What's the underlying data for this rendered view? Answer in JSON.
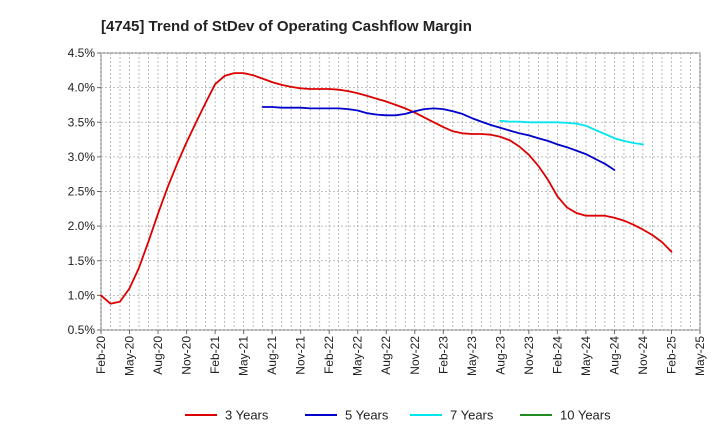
{
  "chart_data": {
    "type": "line",
    "title": "[4745]  Trend of StDev of Operating Cashflow Margin",
    "xlabel": "",
    "ylabel": "",
    "ylim": [
      0.005,
      0.045
    ],
    "y_ticks": [
      0.005,
      0.01,
      0.015,
      0.02,
      0.025,
      0.03,
      0.035,
      0.04,
      0.045
    ],
    "y_tick_labels": [
      "0.5%",
      "1.0%",
      "1.5%",
      "2.0%",
      "2.5%",
      "3.0%",
      "3.5%",
      "4.0%",
      "4.5%"
    ],
    "x_tick_labels": [
      "Feb-20",
      "May-20",
      "Aug-20",
      "Nov-20",
      "Feb-21",
      "May-21",
      "Aug-21",
      "Nov-21",
      "Feb-22",
      "May-22",
      "Aug-22",
      "Nov-22",
      "Feb-23",
      "May-23",
      "Aug-23",
      "Nov-23",
      "Feb-24",
      "May-24",
      "Aug-24",
      "Nov-24",
      "Feb-25",
      "May-25"
    ],
    "x_months": [
      "2020-02",
      "2020-03",
      "2020-04",
      "2020-05",
      "2020-06",
      "2020-07",
      "2020-08",
      "2020-09",
      "2020-10",
      "2020-11",
      "2020-12",
      "2021-01",
      "2021-02",
      "2021-03",
      "2021-04",
      "2021-05",
      "2021-06",
      "2021-07",
      "2021-08",
      "2021-09",
      "2021-10",
      "2021-11",
      "2021-12",
      "2022-01",
      "2022-02",
      "2022-03",
      "2022-04",
      "2022-05",
      "2022-06",
      "2022-07",
      "2022-08",
      "2022-09",
      "2022-10",
      "2022-11",
      "2022-12",
      "2023-01",
      "2023-02",
      "2023-03",
      "2023-04",
      "2023-05",
      "2023-06",
      "2023-07",
      "2023-08",
      "2023-09",
      "2023-10",
      "2023-11",
      "2023-12",
      "2024-01",
      "2024-02",
      "2024-03",
      "2024-04",
      "2024-05",
      "2024-06",
      "2024-07",
      "2024-08",
      "2024-09",
      "2024-10",
      "2024-11",
      "2024-12",
      "2025-01",
      "2025-02",
      "2025-03",
      "2025-04",
      "2025-05"
    ],
    "grid": true,
    "legend_position": "bottom",
    "series": [
      {
        "name": "3 Years",
        "color": "#dd0000",
        "start": "2020-02",
        "values": [
          0.01,
          0.0088,
          0.0091,
          0.011,
          0.014,
          0.0178,
          0.0218,
          0.0256,
          0.029,
          0.0321,
          0.035,
          0.0378,
          0.0405,
          0.0417,
          0.0421,
          0.0421,
          0.0418,
          0.0413,
          0.0408,
          0.0404,
          0.0401,
          0.0399,
          0.0398,
          0.0398,
          0.0398,
          0.0397,
          0.0395,
          0.0392,
          0.0388,
          0.0384,
          0.038,
          0.0375,
          0.037,
          0.0364,
          0.0357,
          0.035,
          0.0343,
          0.0337,
          0.0334,
          0.0333,
          0.0333,
          0.0332,
          0.0329,
          0.0324,
          0.0315,
          0.0303,
          0.0287,
          0.0267,
          0.0243,
          0.0227,
          0.0219,
          0.0215,
          0.0215,
          0.0215,
          0.0212,
          0.0208,
          0.0202,
          0.0195,
          0.0187,
          0.0177,
          0.0163
        ]
      },
      {
        "name": "5 Years",
        "color": "#0000cc",
        "start": "2021-07",
        "values": [
          0.0372,
          0.0372,
          0.0371,
          0.0371,
          0.0371,
          0.037,
          0.037,
          0.037,
          0.037,
          0.0369,
          0.0367,
          0.0363,
          0.0361,
          0.036,
          0.036,
          0.0362,
          0.0366,
          0.0369,
          0.037,
          0.0369,
          0.0366,
          0.0362,
          0.0356,
          0.0351,
          0.0346,
          0.0342,
          0.0338,
          0.0334,
          0.0331,
          0.0327,
          0.0323,
          0.0318,
          0.0314,
          0.0309,
          0.0304,
          0.0297,
          0.029,
          0.0281
        ]
      },
      {
        "name": "7 Years",
        "color": "#00e5ee",
        "start": "2023-08",
        "values": [
          0.0352,
          0.0351,
          0.0351,
          0.035,
          0.035,
          0.035,
          0.035,
          0.0349,
          0.0348,
          0.0345,
          0.0339,
          0.0333,
          0.0327,
          0.0323,
          0.032,
          0.0318
        ]
      },
      {
        "name": "10 Years",
        "color": "#228b22",
        "start": "2025-02",
        "values": []
      }
    ]
  }
}
